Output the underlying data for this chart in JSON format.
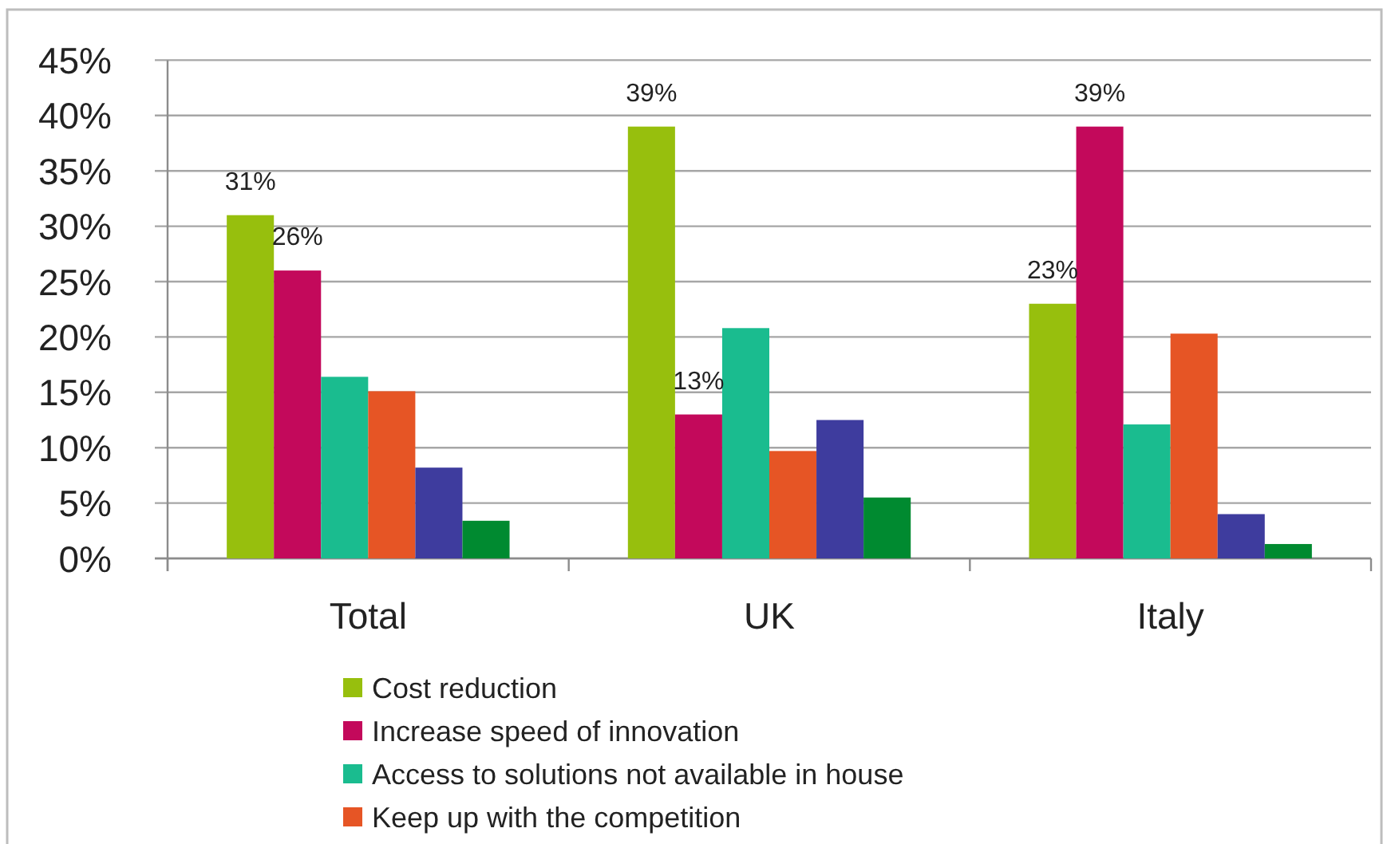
{
  "chart_data": {
    "type": "bar",
    "categories": [
      "Total",
      "UK",
      "Italy"
    ],
    "series": [
      {
        "name": "Cost reduction",
        "color": "#97bf0d",
        "values": [
          31,
          39,
          23
        ],
        "value_labels": [
          "31%",
          "39%",
          "23%"
        ]
      },
      {
        "name": "Increase speed of innovation",
        "color": "#c3095b",
        "values": [
          26,
          13,
          39
        ],
        "value_labels": [
          "26%",
          "13%",
          "39%"
        ]
      },
      {
        "name": "Access to solutions not available in house",
        "color": "#1abc8f",
        "values": [
          16.4,
          20.8,
          12.1
        ]
      },
      {
        "name": "Keep up with the competition",
        "color": "#e65525",
        "values": [
          15.1,
          9.7,
          20.3
        ]
      },
      {
        "color": "#3e3c9e",
        "values": [
          8.2,
          12.5,
          4.0
        ]
      },
      {
        "color": "#008a30",
        "values": [
          3.4,
          5.5,
          1.3
        ]
      }
    ],
    "ylim": [
      0,
      45
    ],
    "yticks": [
      {
        "value": 0,
        "label": "0%"
      },
      {
        "value": 5,
        "label": "5%"
      },
      {
        "value": 10,
        "label": "10%"
      },
      {
        "value": 15,
        "label": "15%"
      },
      {
        "value": 20,
        "label": "20%"
      },
      {
        "value": 25,
        "label": "25%"
      },
      {
        "value": 30,
        "label": "30%"
      },
      {
        "value": 35,
        "label": "35%"
      },
      {
        "value": 40,
        "label": "40%"
      },
      {
        "value": 45,
        "label": "45%"
      }
    ],
    "grid": "y",
    "legend": "bottom"
  }
}
